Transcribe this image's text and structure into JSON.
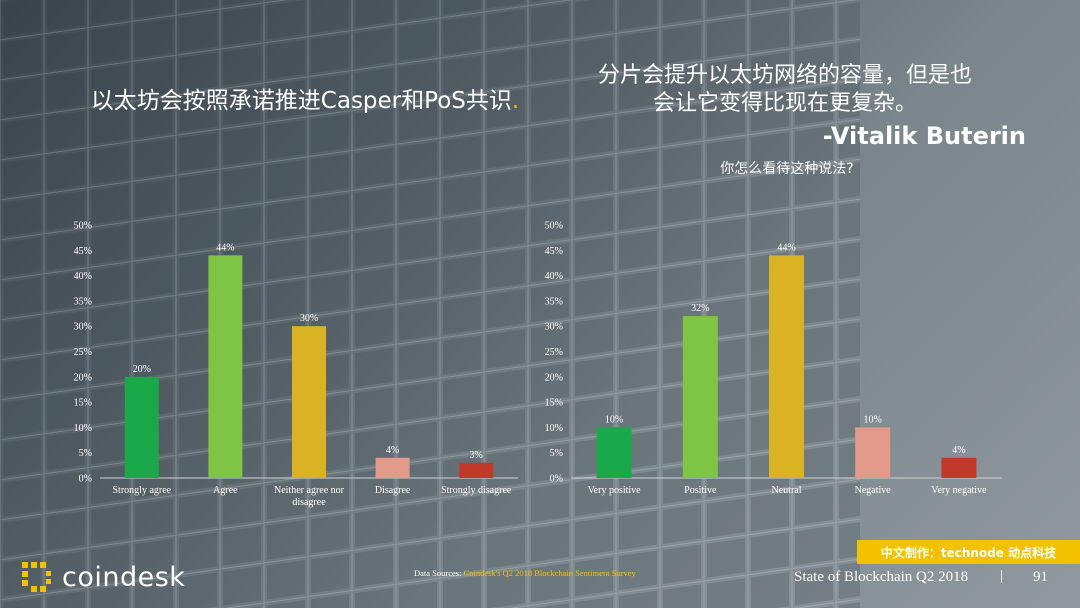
{
  "title_left": {
    "text": "以太坊会按照承诺推进Casper和PoS共识",
    "dot": "."
  },
  "quote": {
    "line1": "分片会提升以太坊网络的容量，但是也",
    "line2": "会让它变得比现在更复杂。",
    "author": "-Vitalik Buterin"
  },
  "question": "你怎么看待这种说法?",
  "colors": {
    "accent": "#f2c200",
    "dark_green": "#1aa84b",
    "light_green": "#7fc545",
    "gold": "#d9b323",
    "pink": "#e39a8a",
    "red": "#c0392b"
  },
  "chart_data": [
    {
      "type": "bar",
      "categories": [
        "Strongly agree",
        "Agree",
        "Neither agree nor disagree",
        "Disagree",
        "Strongly disagree"
      ],
      "category_lines": [
        [
          "Strongly agree"
        ],
        [
          "Agree"
        ],
        [
          "Neither agree nor",
          "disagree"
        ],
        [
          "Disagree"
        ],
        [
          "Strongly disagree"
        ]
      ],
      "values": [
        20,
        44,
        30,
        4,
        3
      ],
      "value_labels": [
        "20%",
        "44%",
        "30%",
        "4%",
        "3%"
      ],
      "colors": [
        "#1aa84b",
        "#7fc545",
        "#d9b323",
        "#e39a8a",
        "#c0392b"
      ],
      "ylim": [
        0,
        50
      ],
      "yticks": [
        "0%",
        "5%",
        "10%",
        "15%",
        "20%",
        "25%",
        "30%",
        "35%",
        "40%",
        "45%",
        "50%"
      ],
      "grid": false
    },
    {
      "type": "bar",
      "categories": [
        "Very positive",
        "Positive",
        "Neutral",
        "Negative",
        "Very negative"
      ],
      "category_lines": [
        [
          "Very positive"
        ],
        [
          "Positive"
        ],
        [
          "Neutral"
        ],
        [
          "Negative"
        ],
        [
          "Very negative"
        ]
      ],
      "values": [
        10,
        32,
        44,
        10,
        4
      ],
      "value_labels": [
        "10%",
        "32%",
        "44%",
        "10%",
        "4%"
      ],
      "colors": [
        "#1aa84b",
        "#7fc545",
        "#d9b323",
        "#e39a8a",
        "#c0392b"
      ],
      "ylim": [
        0,
        50
      ],
      "yticks": [
        "0%",
        "5%",
        "10%",
        "15%",
        "20%",
        "25%",
        "30%",
        "35%",
        "40%",
        "45%",
        "50%"
      ],
      "grid": false
    }
  ],
  "footer": {
    "sources_label": "Data Sources: ",
    "sources_link": "Coindesk's Q2 2018 Blockchain Sentiment Survey",
    "title": "State of Blockchain Q2 2018",
    "separator": "|",
    "page": "91",
    "logo": "coindesk",
    "credit": "中文制作：technode 动点科技"
  }
}
